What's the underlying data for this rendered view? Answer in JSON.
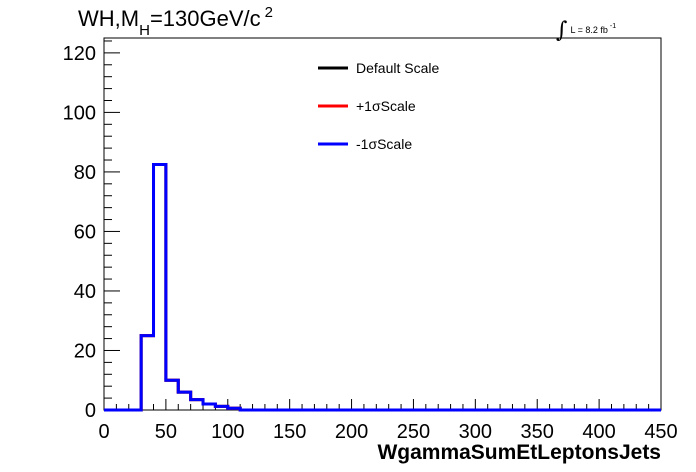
{
  "title": {
    "main": "WH,M",
    "sub": "H",
    "rest": "=130GeV/c",
    "sup": "2"
  },
  "lumi": {
    "integral": "∫",
    "text": "L = 8.2 fb",
    "sup": "-1"
  },
  "chart_data": {
    "type": "line",
    "xlabel": "WgammaSumEtLeptonsJets",
    "ylabel": "",
    "xlim": [
      0,
      450
    ],
    "ylim": [
      0,
      125
    ],
    "xticks": [
      0,
      50,
      100,
      150,
      200,
      250,
      300,
      350,
      400,
      450
    ],
    "yticks": [
      0,
      20,
      40,
      60,
      80,
      100,
      120
    ],
    "grid": false,
    "legend_position": "top-center",
    "bin_edges": [
      0,
      5,
      10,
      15,
      20,
      25,
      30,
      35,
      40,
      45,
      50,
      55,
      60,
      65,
      70,
      75,
      80,
      85,
      90,
      95,
      100,
      105,
      110,
      450
    ],
    "series": [
      {
        "name": "Default Scale",
        "color": "#000000",
        "values": [
          0,
          0,
          0,
          0,
          0,
          0,
          25,
          25,
          82.5,
          82.5,
          10,
          10,
          6,
          6,
          3.5,
          3.5,
          2,
          2,
          1.2,
          1.2,
          0.6,
          0.6,
          0
        ]
      },
      {
        "name": "+1σScale",
        "color": "#ff0000",
        "values": [
          0,
          0,
          0,
          0,
          0,
          0,
          25,
          25,
          82.5,
          82.5,
          10,
          10,
          6,
          6,
          3.5,
          3.5,
          2,
          2,
          1.2,
          1.2,
          0.6,
          0.6,
          0
        ]
      },
      {
        "name": "-1σScale",
        "color": "#0000ff",
        "values": [
          0,
          0,
          0,
          0,
          0,
          0,
          25,
          25,
          82.5,
          82.5,
          10,
          10,
          6,
          6,
          3.5,
          3.5,
          2,
          2,
          1.2,
          1.2,
          0.6,
          0.6,
          0
        ]
      }
    ]
  }
}
